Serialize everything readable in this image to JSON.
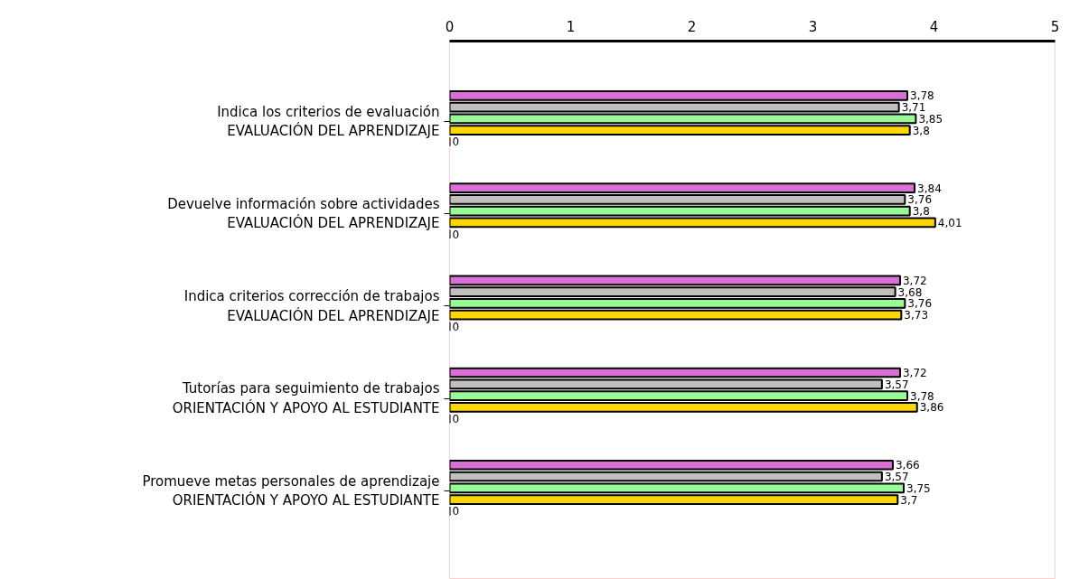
{
  "chart_data": {
    "type": "bar",
    "orientation": "horizontal",
    "categories": [
      "Indica los criterios de evaluación\nEVALUACIÓN DEL APRENDIZAJE",
      "Devuelve información sobre actividades\nEVALUACIÓN DEL APRENDIZAJE",
      "Indica criterios corrección de trabajos\nEVALUACIÓN DEL APRENDIZAJE",
      "Tutorías para seguimiento de trabajos\nORIENTACIÓN Y APOYO AL ESTUDIANTE",
      "Promueve metas personales de aprendizaje\nORIENTACIÓN Y APOYO AL ESTUDIANTE"
    ],
    "series": [
      {
        "color": "#da70d6",
        "values": [
          3.78,
          3.84,
          3.72,
          3.72,
          3.66
        ],
        "value_labels": [
          "3,78",
          "3,84",
          "3,72",
          "3,72",
          "3,66"
        ]
      },
      {
        "color": "#c0c0c0",
        "values": [
          3.71,
          3.76,
          3.68,
          3.57,
          3.57
        ],
        "value_labels": [
          "3,71",
          "3,76",
          "3,68",
          "3,57",
          "3,57"
        ]
      },
      {
        "color": "#98fb98",
        "values": [
          3.85,
          3.8,
          3.76,
          3.78,
          3.75
        ],
        "value_labels": [
          "3,85",
          "3,8",
          "3,76",
          "3,78",
          "3,75"
        ]
      },
      {
        "color": "#ffd700",
        "values": [
          3.8,
          4.01,
          3.73,
          3.86,
          3.7
        ],
        "value_labels": [
          "3,8",
          "4,01",
          "3,73",
          "3,86",
          "3,7"
        ]
      },
      {
        "values": [
          0,
          0,
          0,
          0,
          0
        ],
        "value_labels": [
          "0",
          "0",
          "0",
          "0",
          "0"
        ]
      }
    ],
    "xlim": [
      0,
      5
    ],
    "xticks": [
      0,
      1,
      2,
      3,
      4,
      5
    ],
    "grid": false
  }
}
